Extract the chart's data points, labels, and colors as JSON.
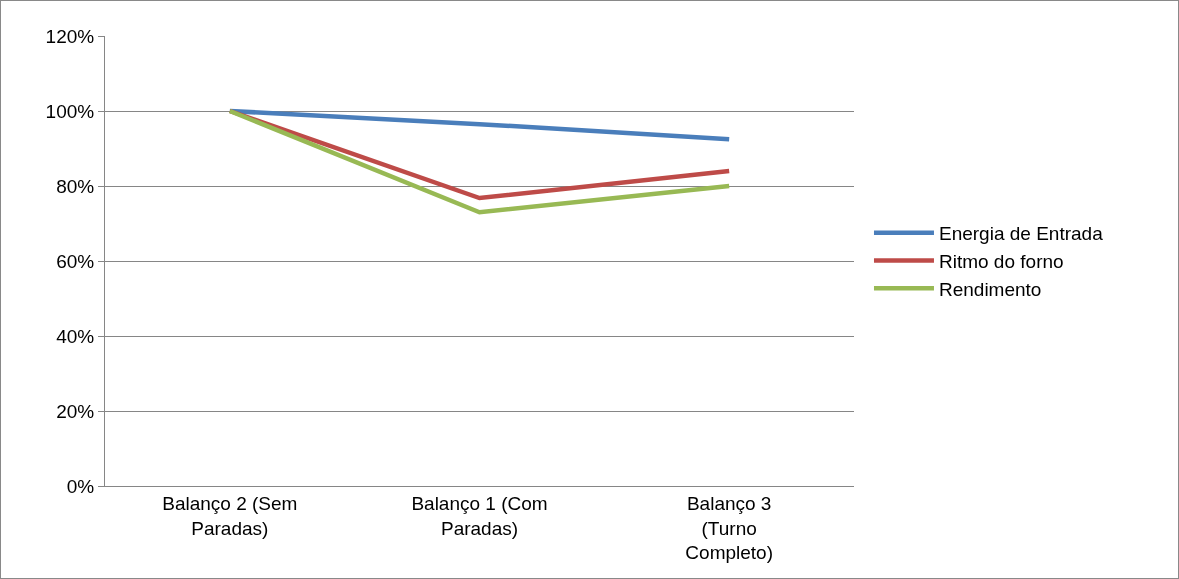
{
  "chart_data": {
    "type": "line",
    "categories": [
      "Balanço 2 (Sem Paradas)",
      "Balanço 1 (Com Paradas)",
      "Balanço 3 (Turno Completo)"
    ],
    "series": [
      {
        "name": "Energia de Entrada",
        "color": "#4a7ebb",
        "values": [
          100,
          96.5,
          92.5
        ]
      },
      {
        "name": "Ritmo do forno",
        "color": "#be4b48",
        "values": [
          100,
          76.8,
          84
        ]
      },
      {
        "name": "Rendimento",
        "color": "#98b954",
        "values": [
          100,
          73,
          80
        ]
      }
    ],
    "ylim": [
      0,
      120
    ],
    "yticks": [
      {
        "value": 0,
        "label": "0%"
      },
      {
        "value": 20,
        "label": "20%"
      },
      {
        "value": 40,
        "label": "40%"
      },
      {
        "value": 60,
        "label": "60%"
      },
      {
        "value": 80,
        "label": "80%"
      },
      {
        "value": 100,
        "label": "100%"
      },
      {
        "value": 120,
        "label": "120%"
      }
    ],
    "grid": "y",
    "legend": "right",
    "marker": "none",
    "line_style": "solid"
  }
}
